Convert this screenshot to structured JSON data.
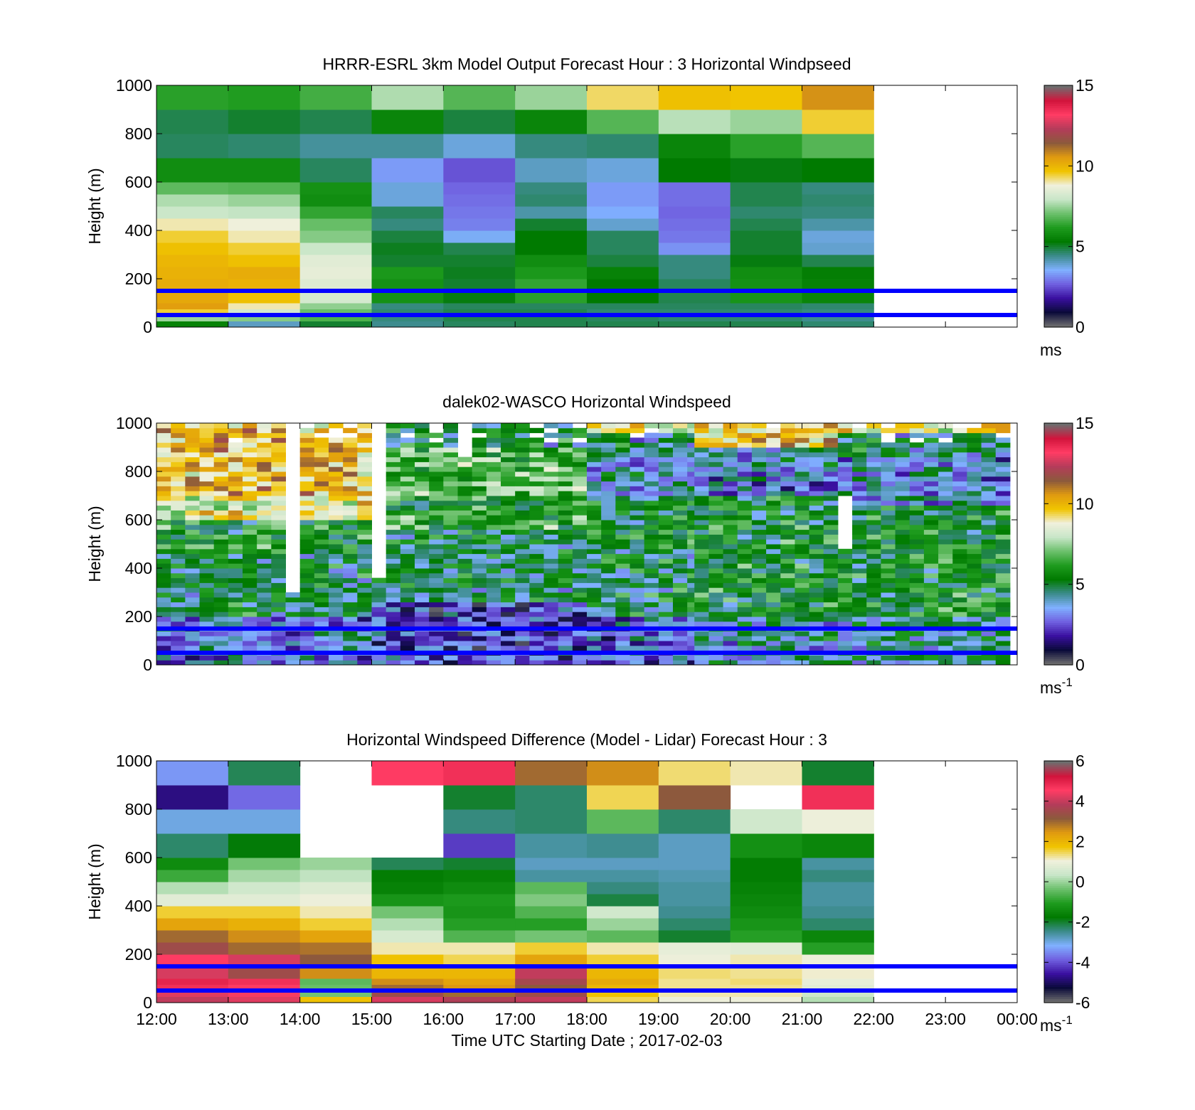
{
  "figure": {
    "time_axis": {
      "tick_labels": [
        "12:00",
        "13:00",
        "14:00",
        "15:00",
        "16:00",
        "17:00",
        "18:00",
        "19:00",
        "20:00",
        "21:00",
        "22:00",
        "23:00",
        "00:00"
      ],
      "range_hours": [
        12,
        24
      ],
      "label": "Time UTC  Starting Date ; 2017-02-03"
    },
    "reference_lines": {
      "heights_m": [
        150,
        50
      ],
      "color": "#0000ff"
    },
    "colormap": {
      "stops": [
        "#6e6e6e",
        "#0a0a3a",
        "#3a10a0",
        "#7060e0",
        "#80b0ff",
        "#3c8c8c",
        "#007a00",
        "#1e9b1e",
        "#6cc06c",
        "#c8e6c8",
        "#f0f0dc",
        "#f0c400",
        "#e09a10",
        "#8c5a3c",
        "#b43c5a",
        "#ff3c64",
        "#d2143c",
        "#6e6e6e"
      ]
    }
  },
  "chart_data": [
    {
      "type": "heatmap",
      "title": "HRRR-ESRL 3km Model Output   Forecast Hour : 3 Horizontal Windpseed",
      "xlabel": "",
      "ylabel": "Height (m)",
      "xlim": [
        12,
        24
      ],
      "ylim": [
        0,
        1000
      ],
      "y_ticks": [
        "0",
        "200",
        "400",
        "600",
        "800",
        "1000"
      ],
      "colorbar": {
        "min": 0,
        "max": 15,
        "ticks": [
          "0",
          "5",
          "10",
          "15"
        ],
        "unit_label": "ms",
        "unit_superscript": ""
      },
      "x_start_hours": [
        12,
        13,
        14,
        15,
        16,
        17,
        18,
        19,
        20,
        21
      ],
      "y_levels_m": [
        0,
        25,
        50,
        75,
        100,
        150,
        200,
        250,
        300,
        350,
        400,
        450,
        500,
        550,
        600,
        700,
        800,
        900,
        1000
      ],
      "values": [
        [
          5.5,
          4.0,
          5.0,
          4.4,
          4.7,
          4.8,
          4.8,
          4.8,
          4.8,
          4.6
        ],
        [
          7.5,
          7.3,
          6.7,
          4.5,
          4.8,
          4.8,
          4.7,
          4.6,
          4.6,
          4.4
        ],
        [
          9.5,
          8.2,
          7.0,
          4.6,
          4.8,
          4.8,
          4.6,
          4.6,
          4.6,
          4.5
        ],
        [
          10.5,
          9.0,
          7.4,
          4.5,
          4.7,
          4.7,
          4.7,
          4.7,
          4.7,
          4.6
        ],
        [
          10.3,
          9.8,
          8.2,
          5.9,
          5.2,
          6.3,
          5.3,
          4.8,
          6.0,
          5.6
        ],
        [
          10.2,
          10.1,
          8.4,
          5.9,
          5.0,
          6.4,
          5.3,
          4.7,
          5.9,
          5.5
        ],
        [
          10.1,
          10.2,
          8.6,
          6.1,
          5.1,
          6.1,
          5.5,
          4.5,
          5.8,
          5.4
        ],
        [
          10.0,
          9.8,
          8.5,
          5.0,
          5.0,
          5.8,
          4.9,
          4.5,
          5.2,
          4.8
        ],
        [
          9.8,
          9.5,
          8.0,
          5.1,
          4.8,
          5.3,
          4.7,
          3.2,
          5.0,
          3.9
        ],
        [
          9.5,
          9.0,
          7.3,
          4.9,
          3.6,
          5.3,
          4.7,
          2.9,
          5.0,
          3.8
        ],
        [
          9.0,
          8.8,
          7.0,
          4.5,
          3.0,
          5.0,
          3.9,
          2.8,
          4.8,
          4.2
        ],
        [
          8.0,
          7.9,
          6.4,
          4.7,
          2.9,
          4.2,
          3.5,
          2.7,
          4.6,
          4.5
        ],
        [
          7.7,
          7.5,
          5.8,
          3.8,
          2.8,
          4.6,
          3.3,
          2.8,
          4.8,
          4.6
        ],
        [
          6.9,
          6.8,
          5.9,
          3.8,
          2.7,
          4.5,
          3.3,
          2.8,
          4.8,
          4.5
        ],
        [
          5.8,
          5.8,
          4.7,
          3.3,
          2.5,
          4.0,
          3.8,
          5.3,
          5.2,
          5.3
        ],
        [
          4.7,
          4.6,
          4.3,
          4.3,
          3.8,
          4.5,
          4.6,
          5.6,
          6.3,
          6.8
        ],
        [
          4.8,
          5.0,
          4.8,
          5.6,
          4.9,
          5.6,
          6.8,
          7.8,
          7.5,
          9.5
        ],
        [
          6.3,
          6.2,
          6.6,
          7.7,
          6.8,
          7.5,
          9.3,
          9.8,
          9.7,
          10.7
        ]
      ]
    },
    {
      "type": "heatmap",
      "title": "dalek02-WASCO  Horizontal Windspeed",
      "xlabel": "",
      "ylabel": "Height (m)",
      "xlim": [
        12,
        24
      ],
      "ylim": [
        0,
        1000
      ],
      "y_ticks": [
        "0",
        "200",
        "400",
        "600",
        "800",
        "1000"
      ],
      "colorbar": {
        "min": 0,
        "max": 15,
        "ticks": [
          "0",
          "5",
          "10",
          "15"
        ],
        "unit_label": "ms",
        "unit_superscript": "-1"
      },
      "series": [
        {
          "from": 12.0,
          "to": 15.0,
          "bands": [
            [
              0,
              200,
              3.3
            ],
            [
              200,
              450,
              5.0
            ],
            [
              450,
              600,
              5.8
            ],
            [
              600,
              700,
              8.5
            ],
            [
              700,
              1000,
              9.8
            ]
          ]
        },
        {
          "from": 15.0,
          "to": 18.0,
          "bands": [
            [
              0,
              250,
              2.3
            ],
            [
              250,
              550,
              4.8
            ],
            [
              550,
              700,
              6.2
            ],
            [
              700,
              900,
              6.8
            ],
            [
              900,
              1000,
              5.0
            ]
          ]
        },
        {
          "from": 18.0,
          "to": 19.5,
          "bands": [
            [
              0,
              200,
              2.8
            ],
            [
              200,
              700,
              5.2
            ],
            [
              700,
              850,
              3.8
            ],
            [
              850,
              950,
              4.5
            ],
            [
              950,
              1000,
              8.5
            ]
          ]
        },
        {
          "from": 19.5,
          "to": 21.5,
          "bands": [
            [
              0,
              200,
              4.2
            ],
            [
              200,
              700,
              5.5
            ],
            [
              700,
              800,
              3.3
            ],
            [
              800,
              900,
              4.0
            ],
            [
              900,
              1000,
              9.5
            ]
          ]
        },
        {
          "from": 21.5,
          "to": 23.8,
          "bands": [
            [
              0,
              200,
              4.3
            ],
            [
              200,
              650,
              5.6
            ],
            [
              650,
              850,
              3.5
            ],
            [
              850,
              950,
              4.8
            ],
            [
              950,
              1000,
              9.0
            ]
          ]
        }
      ],
      "missing_data_columns": {
        "hours": [
          13.85,
          15.05,
          16.3,
          21.6
        ],
        "altitude_ranges_m": [
          [
            300,
            1000
          ],
          [
            350,
            1000
          ],
          [
            850,
            1000
          ],
          [
            480,
            700
          ]
        ]
      }
    },
    {
      "type": "heatmap",
      "title": "Horizontal Windspeed Difference (Model - Lidar) Forecast Hour : 3",
      "xlabel": "Time UTC  Starting Date ; 2017-02-03",
      "ylabel": "Height (m)",
      "xlim": [
        12,
        24
      ],
      "ylim": [
        0,
        1000
      ],
      "y_ticks": [
        "0",
        "200",
        "400",
        "600",
        "800",
        "1000"
      ],
      "colorbar": {
        "min": -6,
        "max": 6,
        "ticks": [
          "-6",
          "-4",
          "-2",
          "0",
          "2",
          "4",
          "6"
        ],
        "unit_label": "ms",
        "unit_superscript": "-1"
      },
      "x_start_hours": [
        12,
        13,
        14,
        15,
        16,
        17,
        18,
        19,
        20,
        21
      ],
      "y_levels_m": [
        0,
        25,
        50,
        75,
        100,
        150,
        200,
        250,
        300,
        350,
        400,
        450,
        500,
        550,
        600,
        700,
        800,
        900,
        1000
      ],
      "values": [
        [
          4.0,
          4.3,
          1.8,
          4.2,
          3.8,
          4.0,
          1.5,
          1.0,
          1.0,
          0.2
        ],
        [
          4.3,
          4.5,
          -0.3,
          3.5,
          3.0,
          3.5,
          1.8,
          1.2,
          1.2,
          0.4
        ],
        [
          4.8,
          4.6,
          -0.4,
          3.0,
          2.5,
          3.2,
          2.0,
          1.3,
          1.3,
          0.8
        ],
        [
          5.0,
          4.8,
          -0.5,
          2.6,
          2.3,
          3.6,
          2.2,
          1.3,
          1.4,
          0.9
        ],
        [
          4.2,
          3.5,
          2.6,
          2.0,
          2.0,
          4.0,
          2.0,
          1.4,
          1.3,
          1.1
        ],
        [
          4.6,
          4.2,
          3.2,
          1.8,
          1.5,
          2.3,
          1.6,
          1.0,
          1.2,
          1.0
        ],
        [
          3.5,
          3.0,
          2.9,
          1.2,
          1.2,
          1.6,
          1.2,
          0.9,
          0.8,
          -1.0
        ],
        [
          3.0,
          2.6,
          2.3,
          0.6,
          -0.6,
          -0.3,
          -0.5,
          -2.0,
          -1.0,
          -1.5
        ],
        [
          2.3,
          2.1,
          1.6,
          0.2,
          -1.0,
          -1.0,
          0.0,
          -2.3,
          -1.2,
          -2.3
        ],
        [
          1.6,
          1.6,
          1.2,
          -0.3,
          -1.2,
          -0.6,
          0.5,
          -2.5,
          -1.4,
          -2.5
        ],
        [
          0.8,
          0.8,
          1.0,
          -1.2,
          -1.1,
          -0.2,
          -2.1,
          -2.6,
          -1.5,
          -2.6
        ],
        [
          0.2,
          0.5,
          0.7,
          -1.6,
          -1.4,
          -0.5,
          -2.4,
          -2.6,
          -1.6,
          -2.6
        ],
        [
          -0.8,
          0.1,
          0.3,
          -1.7,
          -1.6,
          -2.6,
          -2.6,
          -2.7,
          -1.7,
          -2.4
        ],
        [
          -1.4,
          -0.3,
          0.0,
          -2.2,
          -2.0,
          -2.8,
          -2.8,
          -2.8,
          -1.7,
          -2.6
        ],
        [
          -2.3,
          -1.8,
          null,
          null,
          -4.2,
          -2.6,
          -2.5,
          -2.8,
          -1.3,
          -1.5
        ],
        [
          -3.0,
          -3.0,
          null,
          null,
          -2.4,
          -2.3,
          -0.5,
          -2.3,
          0.5,
          1.0
        ],
        [
          -4.8,
          -3.8,
          null,
          null,
          -2.0,
          -2.3,
          1.5,
          3.2,
          null,
          4.8
        ],
        [
          -3.4,
          -2.2,
          null,
          4.6,
          4.8,
          3.0,
          2.6,
          1.4,
          1.2,
          -2.0
        ]
      ]
    }
  ]
}
